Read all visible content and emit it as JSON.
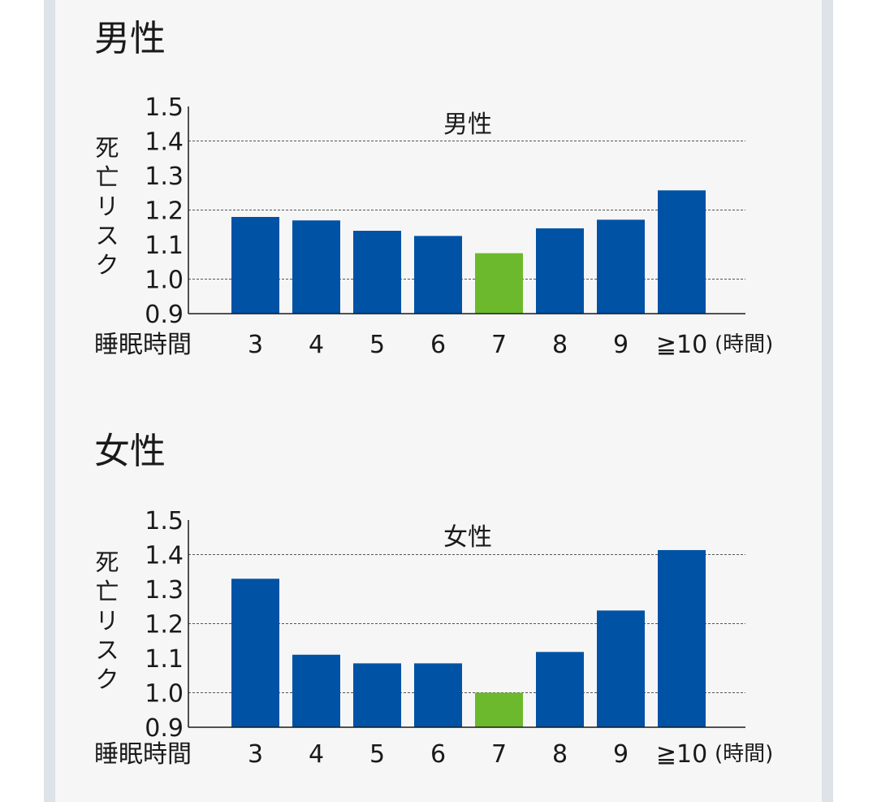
{
  "colors": {
    "bar": "#0052a5",
    "highlight": "#6cb92d",
    "panel": "#f6f6f6",
    "side": "#dde3e8"
  },
  "chart_data": [
    {
      "type": "bar",
      "section_title": "男性",
      "title": "男性",
      "xlabel": "睡眠時間",
      "x_unit": "(時間)",
      "ylabel": "死亡リスク",
      "categories": [
        "3",
        "4",
        "5",
        "6",
        "7",
        "8",
        "9",
        "≧10"
      ],
      "values": [
        1.18,
        1.17,
        1.14,
        1.125,
        1.075,
        1.147,
        1.172,
        1.257
      ],
      "highlight_category": "7",
      "ylim": [
        0.9,
        1.5
      ],
      "yticks": [
        "0.9",
        "1.0",
        "1.1",
        "1.2",
        "1.3",
        "1.4",
        "1.5"
      ],
      "gridlines": [
        1.0,
        1.2,
        1.4
      ],
      "grid_style": "dashed"
    },
    {
      "type": "bar",
      "section_title": "女性",
      "title": "女性",
      "xlabel": "睡眠時間",
      "x_unit": "(時間)",
      "ylabel": "死亡リスク",
      "categories": [
        "3",
        "4",
        "5",
        "6",
        "7",
        "8",
        "9",
        "≧10"
      ],
      "values": [
        1.33,
        1.11,
        1.085,
        1.085,
        1.0,
        1.118,
        1.238,
        1.413
      ],
      "highlight_category": "7",
      "ylim": [
        0.9,
        1.5
      ],
      "yticks": [
        "0.9",
        "1.0",
        "1.1",
        "1.2",
        "1.3",
        "1.4",
        "1.5"
      ],
      "gridlines": [
        1.0,
        1.2,
        1.4
      ],
      "grid_style": "dashed"
    }
  ]
}
